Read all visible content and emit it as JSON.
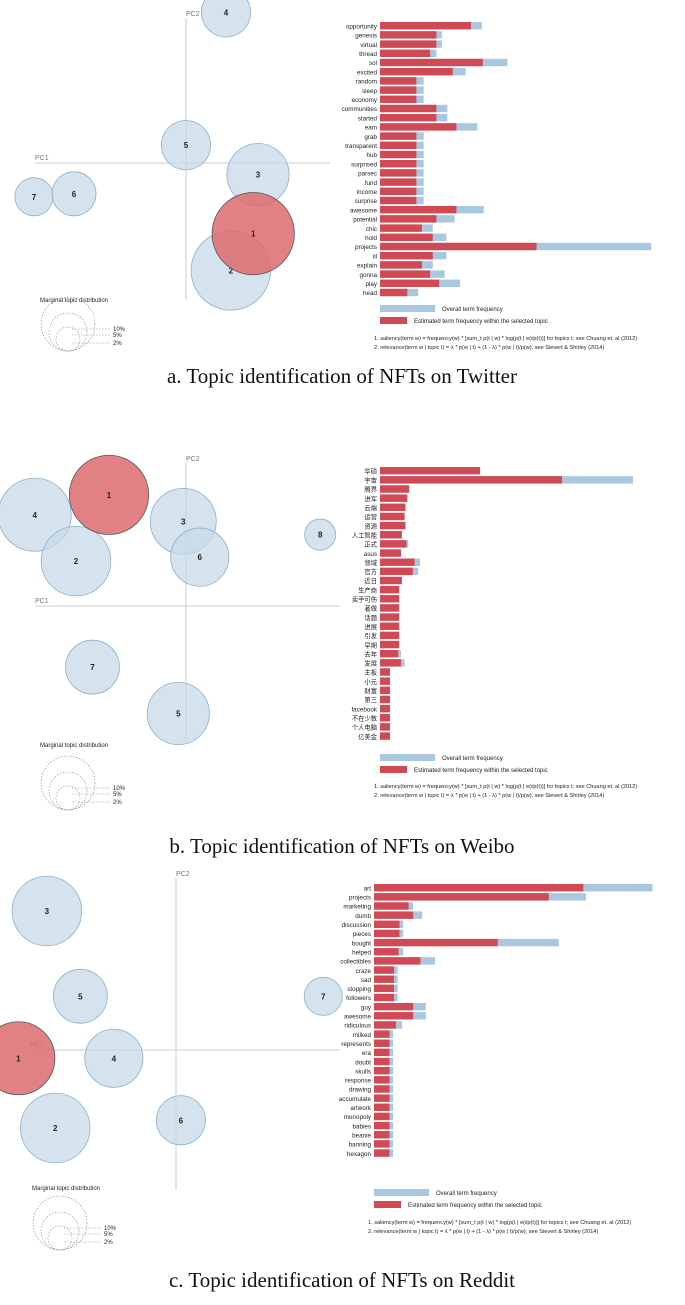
{
  "chart_data": [
    {
      "type": "bar",
      "panel": "a",
      "caption": "a. Topic identification of NFTs on Twitter",
      "map": {
        "pc1_label": "PC1",
        "pc2_label": "PC2",
        "selected_topic": "1",
        "topics": [
          {
            "label": "4",
            "pc1": 0.35,
            "pc2": 0.95,
            "share": 0.05
          },
          {
            "label": "5",
            "pc1": 0.1,
            "pc2": 0.05,
            "share": 0.05
          },
          {
            "label": "3",
            "pc1": 0.55,
            "pc2": -0.15,
            "share": 0.08
          },
          {
            "label": "7",
            "pc1": -0.85,
            "pc2": -0.3,
            "share": 0.03
          },
          {
            "label": "6",
            "pc1": -0.6,
            "pc2": -0.28,
            "share": 0.04
          },
          {
            "label": "1",
            "pc1": 0.52,
            "pc2": -0.55,
            "share": 0.14
          },
          {
            "label": "2",
            "pc1": 0.38,
            "pc2": -0.8,
            "share": 0.13
          }
        ]
      },
      "marginal": {
        "title": "Marginal topic distribution",
        "ticks": [
          "2%",
          "5%",
          "10%"
        ]
      },
      "legend": {
        "overall": "Overall term frequency",
        "estimated": "Estimated term frequency within the selected topic"
      },
      "notes": [
        "1. saliency(term w) = frequency(w) * [sum_t p(t | w) * log(p(t | w)/p(t))] for topics t; see Chuang et. al (2012)",
        "2. relevance(term w | topic t) = λ * p(w | t) + (1 - λ) * p(w | t)/p(w); see Sievert & Shirley (2014)"
      ],
      "terms": [
        "opportunity",
        "genesis",
        "virtual",
        "thread",
        "sol",
        "excited",
        "random",
        "sleep",
        "economy",
        "communities",
        "started",
        "eam",
        "grab",
        "transparent",
        "hub",
        "surprised",
        "parsec",
        "fund",
        "income",
        "surprise",
        "awesome",
        "potential",
        "chic",
        "hold",
        "projects",
        "ill",
        "explain",
        "gonna",
        "play",
        "head"
      ],
      "overall": [
        112,
        68,
        68,
        62,
        140,
        94,
        48,
        48,
        48,
        74,
        74,
        107,
        48,
        48,
        48,
        48,
        48,
        48,
        48,
        48,
        114,
        82,
        58,
        73,
        298,
        73,
        58,
        71,
        88,
        42
      ],
      "estimated": [
        100,
        62,
        62,
        55,
        113,
        80,
        40,
        40,
        40,
        62,
        62,
        84,
        40,
        40,
        40,
        40,
        40,
        40,
        40,
        40,
        84,
        62,
        46,
        58,
        172,
        58,
        46,
        55,
        65,
        30
      ]
    },
    {
      "type": "bar",
      "panel": "b",
      "caption": "b. Topic identification of NFTs on Weibo",
      "map": {
        "pc1_label": "PC1",
        "pc2_label": "PC2",
        "selected_topic": "1",
        "topics": [
          {
            "label": "1",
            "pc1": -0.4,
            "pc2": 0.85,
            "share": 0.13
          },
          {
            "label": "4",
            "pc1": -0.85,
            "pc2": 0.7,
            "share": 0.11
          },
          {
            "label": "3",
            "pc1": 0.05,
            "pc2": 0.65,
            "share": 0.09
          },
          {
            "label": "2",
            "pc1": -0.6,
            "pc2": 0.35,
            "share": 0.1
          },
          {
            "label": "6",
            "pc1": 0.15,
            "pc2": 0.38,
            "share": 0.07
          },
          {
            "label": "8",
            "pc1": 0.88,
            "pc2": 0.55,
            "share": 0.02
          },
          {
            "label": "7",
            "pc1": -0.5,
            "pc2": -0.45,
            "share": 0.06
          },
          {
            "label": "5",
            "pc1": 0.02,
            "pc2": -0.8,
            "share": 0.08
          }
        ]
      },
      "marginal": {
        "title": "Marginal topic distribution",
        "ticks": [
          "2%",
          "5%",
          "10%"
        ]
      },
      "legend": {
        "overall": "Overall term frequency",
        "estimated": "Estimated term frequency within the selected topic"
      },
      "notes": [
        "1. saliency(term w) = frequency(w) * [sum_t p(t | w) * log(p(t | w)/p(t))] for topics t; see Chuang et. al (2012)",
        "2. relevance(term w | topic t) = λ * p(w | t) + (1 - λ) * p(w | t)/p(w); see Sievert & Shirley (2014)"
      ],
      "terms": [
        "华硕",
        "宇宙",
        "腾界",
        "进军",
        "云端",
        "运营",
        "资源",
        "人工智能",
        "正式",
        "asus",
        "领域",
        "官方",
        "近日",
        "生产商",
        "卖手可伤",
        "著做",
        "话题",
        "进展",
        "引发",
        "早期",
        "去年",
        "发展",
        "主板",
        "小元",
        "财富",
        "第三",
        "facebook",
        "不在少数",
        "个人电脑",
        "亿美金"
      ],
      "overall": [
        110,
        278,
        32,
        30,
        28,
        27,
        28,
        24,
        31,
        23,
        44,
        42,
        24,
        21,
        21,
        21,
        21,
        21,
        21,
        21,
        23,
        27,
        11,
        11,
        11,
        11,
        11,
        11,
        11,
        11
      ],
      "estimated": [
        110,
        200,
        32,
        30,
        28,
        27,
        28,
        24,
        29,
        23,
        38,
        36,
        24,
        21,
        21,
        21,
        21,
        21,
        21,
        21,
        20,
        23,
        11,
        11,
        11,
        11,
        11,
        11,
        11,
        11
      ]
    },
    {
      "type": "bar",
      "panel": "c",
      "caption": "c. Topic identification of NFTs on Reddit",
      "map": {
        "pc1_label": "PC1",
        "pc2_label": "PC2",
        "selected_topic": "1",
        "topics": [
          {
            "label": "3",
            "pc1": -0.75,
            "pc2": 0.8,
            "share": 0.1
          },
          {
            "label": "5",
            "pc1": -0.55,
            "pc2": 0.25,
            "share": 0.06
          },
          {
            "label": "7",
            "pc1": 0.9,
            "pc2": 0.25,
            "share": 0.03
          },
          {
            "label": "1",
            "pc1": -0.92,
            "pc2": -0.15,
            "share": 0.11
          },
          {
            "label": "4",
            "pc1": -0.35,
            "pc2": -0.15,
            "share": 0.07
          },
          {
            "label": "2",
            "pc1": -0.7,
            "pc2": -0.6,
            "share": 0.1
          },
          {
            "label": "6",
            "pc1": 0.05,
            "pc2": -0.55,
            "share": 0.05
          }
        ]
      },
      "marginal": {
        "title": "Marginal topic distribution",
        "ticks": [
          "2%",
          "5%",
          "10%"
        ]
      },
      "legend": {
        "overall": "Overall term frequency",
        "estimated": "Estimated term frequency within the selected topic"
      },
      "notes": [
        "1. saliency(term w) = frequency(w) * [sum_t p(t | w) * log(p(t | w)/p(t))] for topics t; see Chuang et. al (2012)",
        "2. relevance(term w | topic t) = λ * p(w | t) + (1 - λ) * p(w | t)/p(w); see Sievert & Shirley (2014)"
      ],
      "terms": [
        "art",
        "projects",
        "marketing",
        "dumb",
        "discussion",
        "pieces",
        "bought",
        "helped",
        "collectibles",
        "craze",
        "sad",
        "stopping",
        "followers",
        "guy",
        "awesome",
        "ridiculous",
        "milked",
        "represents",
        "era",
        "doubt",
        "skulls",
        "response",
        "drawing",
        "accumulate",
        "artwork",
        "monopoly",
        "babies",
        "beanie",
        "banning",
        "hexagon"
      ],
      "overall": [
        306,
        233,
        43,
        53,
        32,
        32,
        203,
        32,
        67,
        26,
        26,
        26,
        26,
        57,
        57,
        31,
        21,
        21,
        21,
        21,
        21,
        21,
        21,
        21,
        21,
        21,
        21,
        21,
        21,
        21
      ],
      "estimated": [
        230,
        192,
        38,
        43,
        28,
        28,
        136,
        27,
        51,
        22,
        22,
        22,
        22,
        43,
        43,
        24,
        17,
        17,
        17,
        17,
        17,
        17,
        17,
        17,
        17,
        17,
        17,
        17,
        17,
        17
      ]
    }
  ]
}
